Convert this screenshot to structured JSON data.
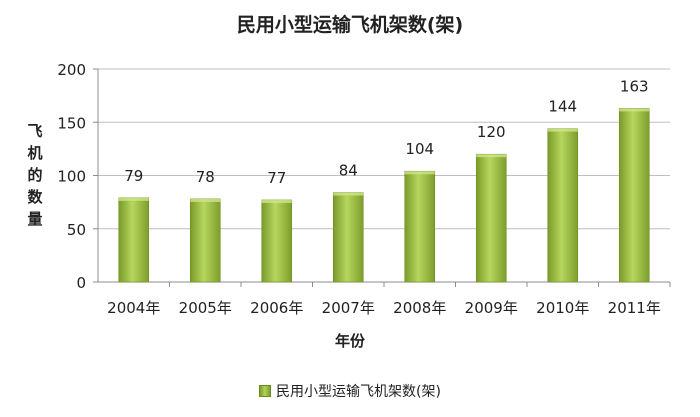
{
  "chart_data": {
    "type": "bar",
    "title": "民用小型运输飞机架数(架)",
    "xlabel": "年份",
    "ylabel": "飞机的数量",
    "categories": [
      "2004年",
      "2005年",
      "2006年",
      "2007年",
      "2008年",
      "2009年",
      "2010年",
      "2011年"
    ],
    "series": [
      {
        "name": "民用小型运输飞机架数(架)",
        "values": [
          79,
          78,
          77,
          84,
          104,
          120,
          144,
          163
        ]
      }
    ],
    "ylim": [
      0,
      200
    ],
    "yticks": [
      0,
      50,
      100,
      150,
      200
    ],
    "grid": true,
    "legend_position": "bottom",
    "bar_color": "#9bbb59"
  }
}
